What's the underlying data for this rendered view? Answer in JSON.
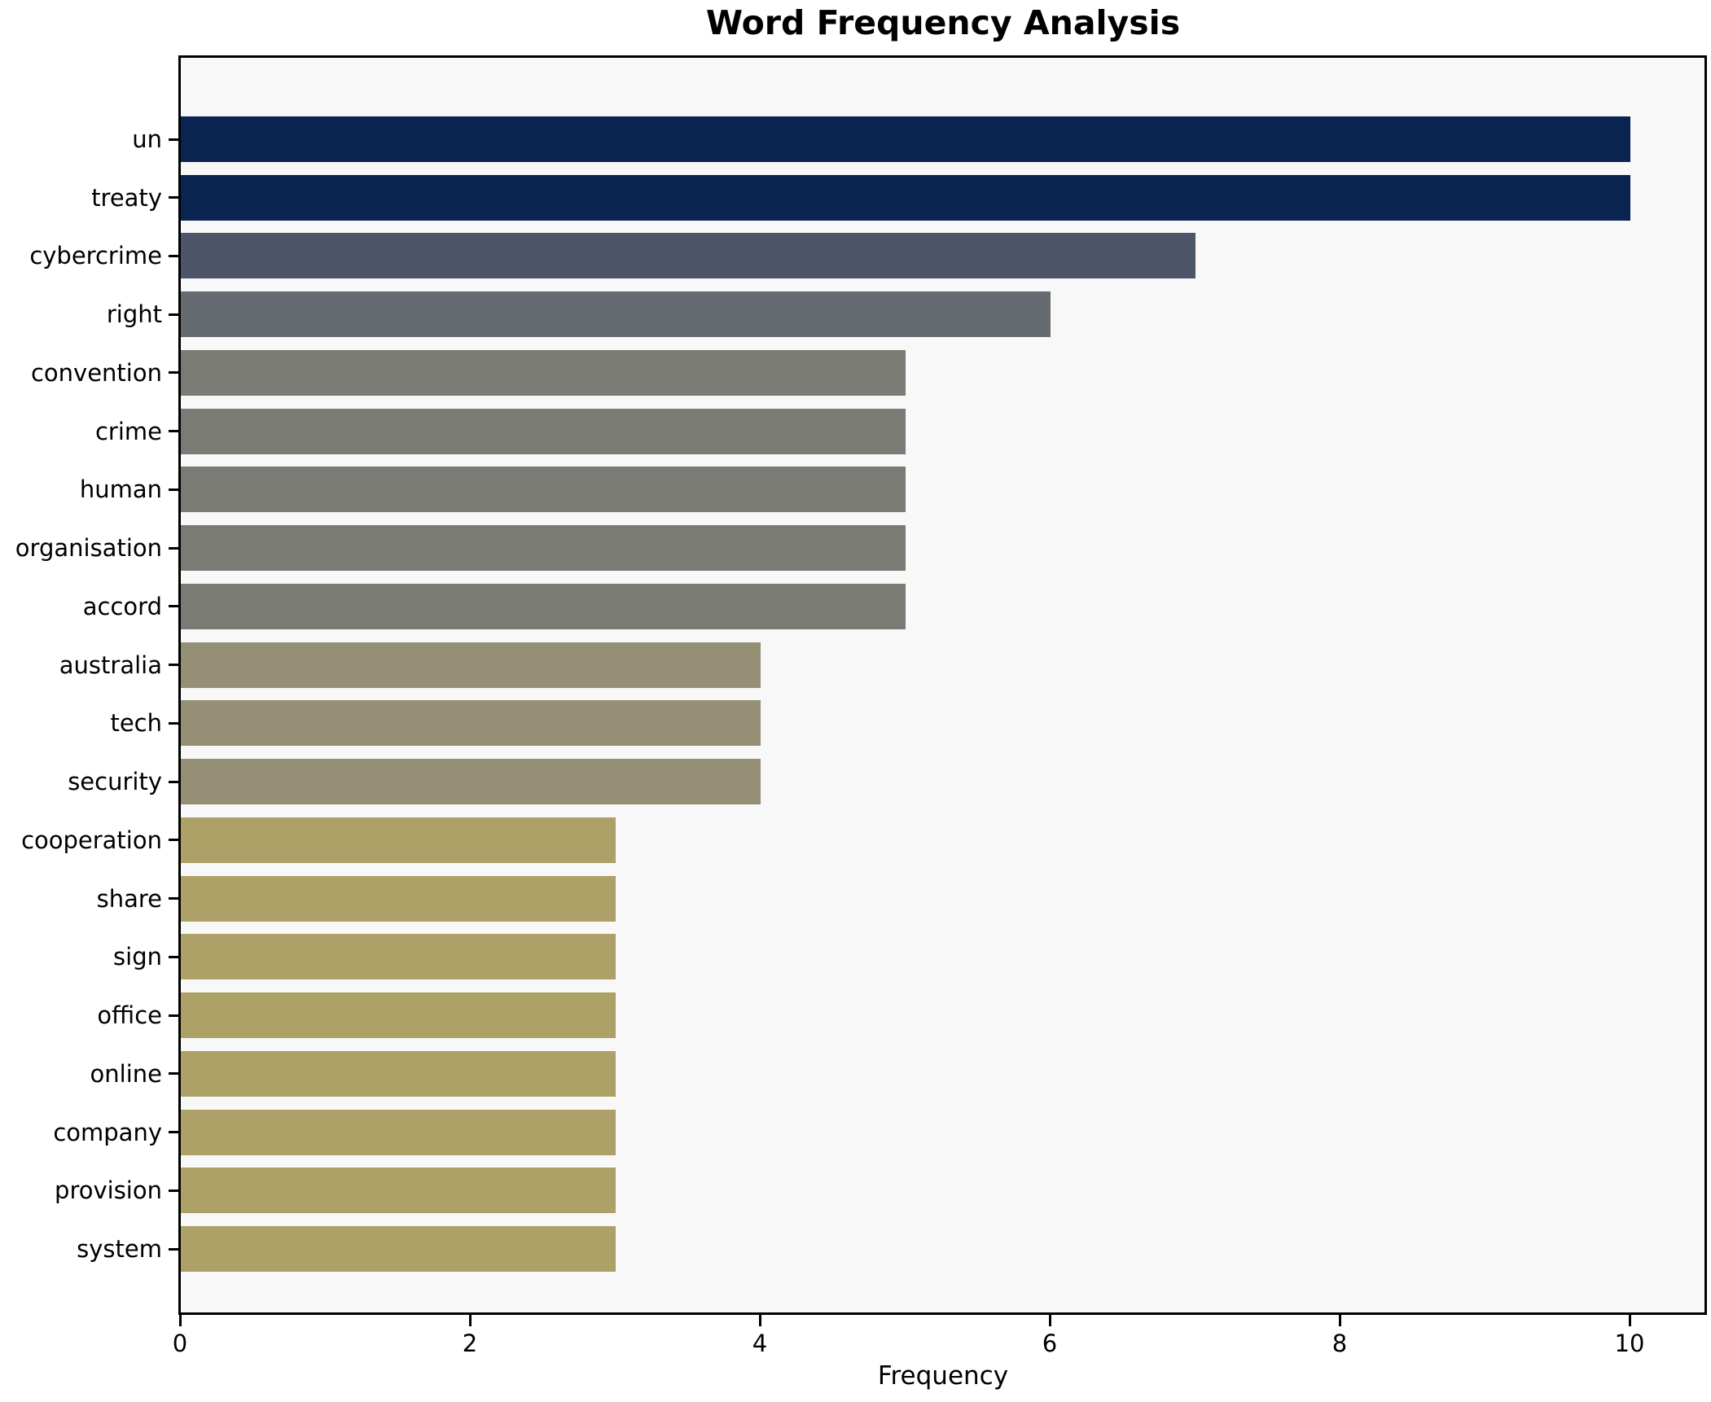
{
  "figure": {
    "title": "Word Frequency Analysis",
    "xlabel": "Frequency"
  },
  "chart_data": {
    "type": "bar",
    "orientation": "horizontal",
    "title": "Word Frequency Analysis",
    "xlabel": "Frequency",
    "ylabel": "",
    "categories": [
      "un",
      "treaty",
      "cybercrime",
      "right",
      "convention",
      "crime",
      "human",
      "organisation",
      "accord",
      "australia",
      "tech",
      "security",
      "cooperation",
      "share",
      "sign",
      "office",
      "online",
      "company",
      "provision",
      "system"
    ],
    "values": [
      10,
      10,
      7,
      6,
      5,
      5,
      5,
      5,
      5,
      4,
      4,
      4,
      3,
      3,
      3,
      3,
      3,
      3,
      3,
      3
    ],
    "bar_colors": [
      "#0a2351",
      "#0a2351",
      "#4d5669",
      "#666a71",
      "#7b7b76",
      "#7b7b76",
      "#7b7b76",
      "#7b7b76",
      "#7b7b76",
      "#958f76",
      "#958f76",
      "#958f76",
      "#ada168",
      "#ada168",
      "#ada168",
      "#ada168",
      "#ada168",
      "#ada168",
      "#ada168",
      "#ada168"
    ],
    "xlim": [
      0,
      10.53
    ],
    "xticks": [
      0,
      2,
      4,
      6,
      8,
      10
    ],
    "xtick_labels": [
      "0",
      "2",
      "4",
      "6",
      "8",
      "10"
    ],
    "grid": false,
    "legend": "none",
    "plot_bg": "#f7f8f7",
    "figure_bg": "#ffffff",
    "spine_color": "#000000"
  }
}
